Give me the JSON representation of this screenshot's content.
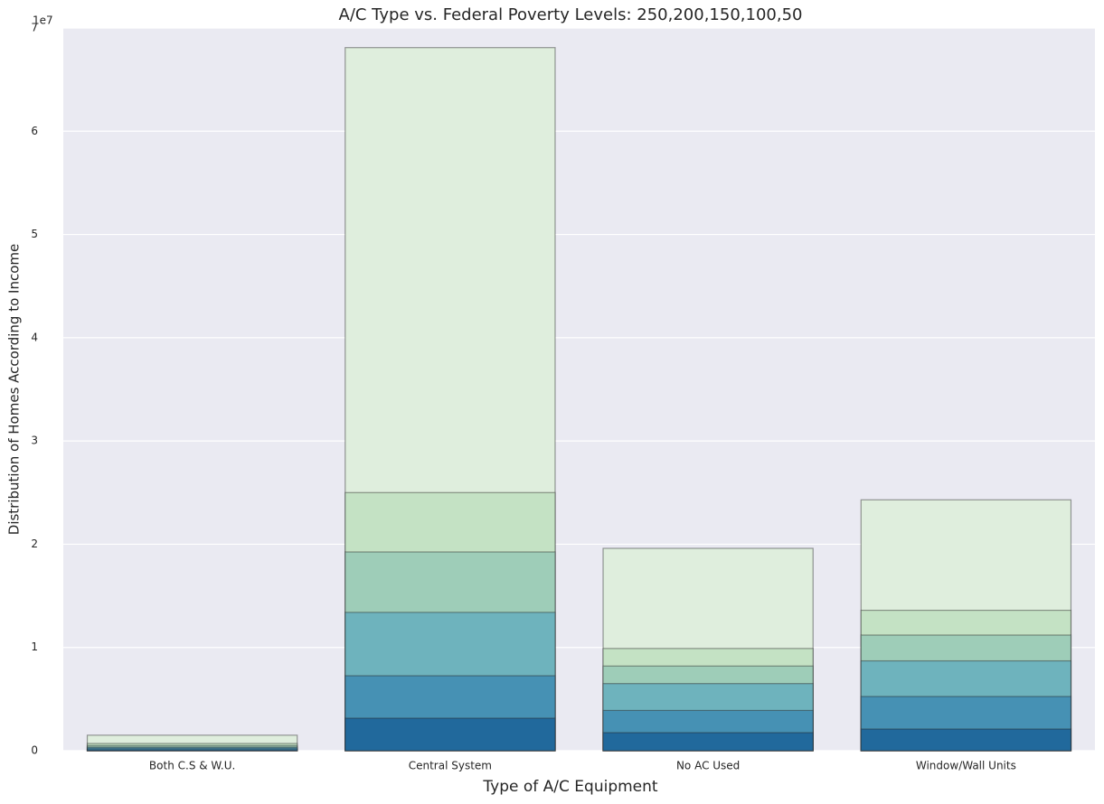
{
  "chart_data": {
    "type": "bar",
    "overlap": true,
    "title": "A/C Type vs. Federal Poverty Levels: 250,200,150,100,50",
    "xlabel": "Type of A/C Equipment",
    "ylabel": "Distribution of Homes According to Income",
    "y_offset_label": "1e7",
    "categories": [
      "Both C.S & W.U.",
      "Central System",
      "No AC Used",
      "Window/Wall Units"
    ],
    "series": [
      {
        "color": "#dfeedd",
        "values": [
          1500000,
          68100000,
          19600000,
          24300000
        ]
      },
      {
        "color": "#c4e2c4",
        "values": [
          700000,
          25000000,
          9900000,
          13600000
        ]
      },
      {
        "color": "#9ecdb8",
        "values": [
          500000,
          19250000,
          8200000,
          11200000
        ]
      },
      {
        "color": "#6eb3bd",
        "values": [
          350000,
          13400000,
          6500000,
          8700000
        ]
      },
      {
        "color": "#4691b4",
        "values": [
          250000,
          7260000,
          3900000,
          5250000
        ]
      },
      {
        "color": "#21699c",
        "values": [
          100000,
          3150000,
          1750000,
          2100000
        ]
      }
    ],
    "ylim": [
      0,
      70000000
    ],
    "yticks": [
      {
        "value": 0,
        "label": "0"
      },
      {
        "value": 10000000,
        "label": "1"
      },
      {
        "value": 20000000,
        "label": "2"
      },
      {
        "value": 30000000,
        "label": "3"
      },
      {
        "value": 40000000,
        "label": "4"
      },
      {
        "value": 50000000,
        "label": "5"
      },
      {
        "value": 60000000,
        "label": "6"
      },
      {
        "value": 70000000,
        "label": "7"
      }
    ],
    "grid": true
  }
}
